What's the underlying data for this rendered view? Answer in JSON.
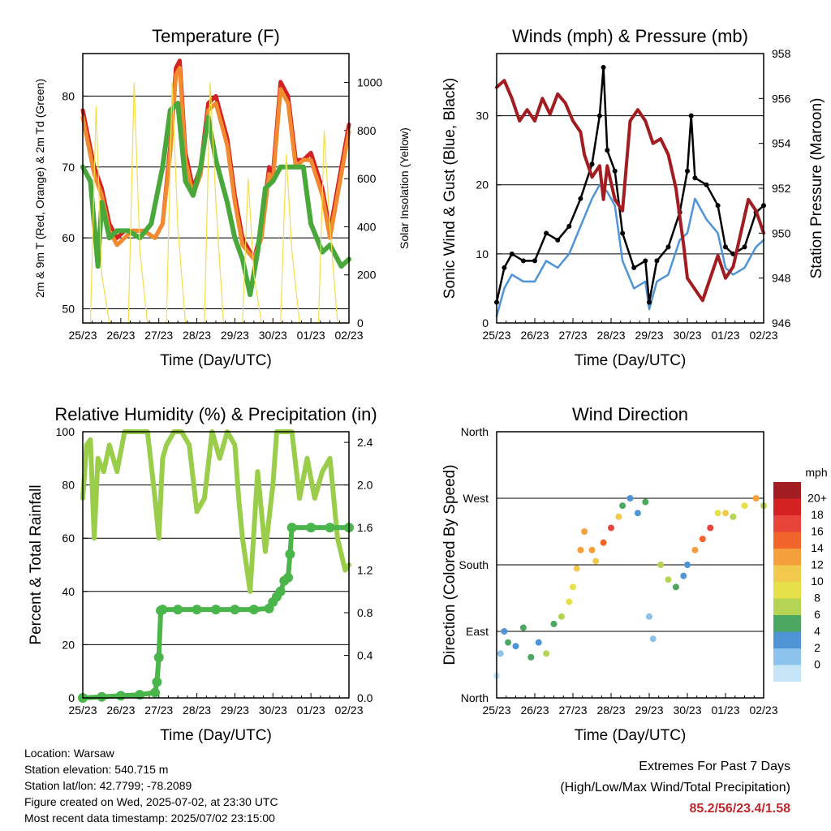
{
  "chart_data": [
    {
      "type": "line",
      "title": "Temperature (F)",
      "xlabel": "Time (Day/UTC)",
      "ylabel": "2m & 9m T (Red, Orange) & 2m Td (Green)",
      "y2label": "Solar Insolation (Yellow)",
      "x_ticks": [
        "25/23",
        "26/23",
        "27/23",
        "28/23",
        "29/23",
        "30/23",
        "01/23",
        "02/23"
      ],
      "ylim": [
        48,
        86
      ],
      "y_ticks": [
        50,
        60,
        70,
        80
      ],
      "y2lim": [
        0,
        1120
      ],
      "y2_ticks": [
        0,
        200,
        400,
        600,
        800,
        1000
      ],
      "grid": true,
      "series": [
        {
          "color": "#d42121",
          "x": [
            0,
            0.3,
            0.5,
            0.7,
            0.9,
            1.1,
            1.3,
            1.6,
            1.9,
            2.1,
            2.3,
            2.45,
            2.55,
            2.7,
            2.9,
            3.1,
            3.3,
            3.5,
            3.8,
            4.0,
            4.2,
            4.5,
            4.7,
            4.9,
            5.0,
            5.2,
            5.4,
            5.6,
            5.8,
            6.0,
            6.3,
            6.5,
            6.8,
            7.0
          ],
          "values": [
            78,
            70,
            67,
            62,
            60,
            61,
            61,
            61,
            60,
            62,
            73,
            84,
            85,
            72,
            67,
            70,
            79,
            80,
            74,
            66,
            60,
            57,
            61,
            70,
            69,
            82,
            80,
            71,
            71,
            72,
            67,
            61,
            70,
            76
          ]
        },
        {
          "color": "#f28a30",
          "x": [
            0,
            0.3,
            0.5,
            0.7,
            0.9,
            1.1,
            1.3,
            1.6,
            1.9,
            2.1,
            2.3,
            2.45,
            2.55,
            2.7,
            2.9,
            3.1,
            3.3,
            3.5,
            3.8,
            4.0,
            4.2,
            4.5,
            4.7,
            4.9,
            5.0,
            5.2,
            5.4,
            5.6,
            5.8,
            6.0,
            6.3,
            6.5,
            6.8,
            7.0
          ],
          "values": [
            77,
            69,
            66,
            61,
            59,
            60,
            61,
            61,
            60,
            62,
            72,
            83,
            84,
            71,
            66,
            69,
            78,
            79,
            73,
            65,
            59,
            57,
            60,
            69,
            68,
            81,
            79,
            70,
            71,
            71,
            66,
            60,
            69,
            75
          ]
        },
        {
          "color": "#4aa83b",
          "x": [
            0,
            0.2,
            0.4,
            0.5,
            0.7,
            0.9,
            1.2,
            1.5,
            1.8,
            2.1,
            2.3,
            2.5,
            2.7,
            2.9,
            3.1,
            3.3,
            3.5,
            3.8,
            4.0,
            4.2,
            4.4,
            4.6,
            4.8,
            5.0,
            5.2,
            5.5,
            5.8,
            6.0,
            6.3,
            6.5,
            6.8,
            7.0
          ],
          "values": [
            70,
            68,
            56,
            65,
            60,
            61,
            61,
            60,
            62,
            70,
            78,
            79,
            68,
            66,
            70,
            77,
            71,
            65,
            60,
            57,
            52,
            58,
            67,
            68,
            70,
            70,
            70,
            62,
            58,
            59,
            56,
            57
          ]
        },
        {
          "color": "#f5dd4a",
          "x": [
            0,
            0.2,
            0.35,
            0.5,
            0.7,
            0.85,
            1.0,
            1.2,
            1.35,
            1.5,
            1.7,
            1.85,
            2.0,
            2.2,
            2.35,
            2.5,
            2.7,
            2.85,
            3.0,
            3.2,
            3.35,
            3.5,
            3.7,
            3.85,
            4.0,
            4.2,
            4.35,
            4.5,
            4.7,
            4.85,
            5.0,
            5.2,
            5.35,
            5.5,
            5.7,
            5.85,
            6.0,
            6.2,
            6.35,
            6.5,
            6.7,
            6.85,
            7.0
          ],
          "values2": [
            0,
            0,
            900,
            200,
            0,
            0,
            0,
            0,
            1000,
            300,
            0,
            0,
            0,
            0,
            1000,
            400,
            0,
            0,
            0,
            0,
            1000,
            500,
            0,
            0,
            0,
            0,
            600,
            200,
            0,
            0,
            0,
            0,
            700,
            300,
            0,
            0,
            0,
            0,
            800,
            400,
            0,
            0,
            0
          ]
        }
      ]
    },
    {
      "type": "line",
      "title": "Winds (mph) & Pressure (mb)",
      "xlabel": "Time (Day/UTC)",
      "ylabel": "Sonic Wind & Gust (Blue, Black)",
      "y2label": "Station Pressure (Maroon)",
      "x_ticks": [
        "25/23",
        "26/23",
        "27/23",
        "28/23",
        "29/23",
        "30/23",
        "01/23",
        "02/23"
      ],
      "ylim": [
        0,
        39
      ],
      "y_ticks": [
        0,
        10,
        20,
        30
      ],
      "y2lim": [
        946,
        958
      ],
      "y2_ticks": [
        946,
        948,
        950,
        952,
        954,
        956,
        958
      ],
      "grid": true,
      "series": [
        {
          "color": "#4f94d4",
          "x": [
            0,
            0.2,
            0.4,
            0.7,
            1.0,
            1.3,
            1.6,
            1.9,
            2.2,
            2.5,
            2.7,
            2.9,
            3.1,
            3.3,
            3.6,
            3.9,
            4.0,
            4.2,
            4.5,
            4.8,
            5.0,
            5.2,
            5.5,
            5.8,
            6.0,
            6.2,
            6.5,
            6.8,
            7.0
          ],
          "values": [
            1,
            5,
            7,
            6,
            6,
            9,
            8,
            10,
            14,
            18,
            20,
            19,
            17,
            9,
            5,
            6,
            2,
            6,
            7,
            12,
            13,
            18,
            15,
            13,
            8,
            7,
            8,
            11,
            12
          ]
        },
        {
          "color": "#000000",
          "x": [
            0,
            0.2,
            0.4,
            0.7,
            1.0,
            1.3,
            1.6,
            1.9,
            2.2,
            2.5,
            2.7,
            2.8,
            2.9,
            3.1,
            3.3,
            3.6,
            3.9,
            4.0,
            4.2,
            4.5,
            4.8,
            5.0,
            5.1,
            5.2,
            5.5,
            5.8,
            6.0,
            6.2,
            6.5,
            6.8,
            7.0
          ],
          "values": [
            3,
            8,
            10,
            9,
            9,
            13,
            12,
            14,
            18,
            23,
            30,
            37,
            25,
            22,
            13,
            8,
            9,
            3,
            9,
            11,
            16,
            22,
            30,
            21,
            20,
            17,
            11,
            10,
            11,
            16,
            17
          ]
        },
        {
          "color": "#a11d21",
          "x": [
            0,
            0.2,
            0.4,
            0.6,
            0.8,
            1.0,
            1.2,
            1.4,
            1.6,
            1.8,
            2.0,
            2.2,
            2.3,
            2.5,
            2.7,
            2.8,
            2.9,
            3.1,
            3.3,
            3.5,
            3.7,
            3.9,
            4.1,
            4.3,
            4.5,
            4.7,
            4.9,
            5.0,
            5.2,
            5.4,
            5.6,
            5.8,
            6.0,
            6.2,
            6.4,
            6.6,
            6.8,
            7.0
          ],
          "values2": [
            956.5,
            956.8,
            956.0,
            955.0,
            955.5,
            955.0,
            956.0,
            955.3,
            956.2,
            955.8,
            955.0,
            954.5,
            953.5,
            952.5,
            953.0,
            951.5,
            953.0,
            951.5,
            951.0,
            955.0,
            955.5,
            955.0,
            954.0,
            954.2,
            953.5,
            952.0,
            949.5,
            948.0,
            947.5,
            947.0,
            948.0,
            949.0,
            948.0,
            948.5,
            950.0,
            951.5,
            951.0,
            950.0
          ]
        }
      ]
    },
    {
      "type": "line",
      "title": "Relative Humidity (%) & Precipitation (in)",
      "xlabel": "Time (Day/UTC)",
      "ylabel": "Percent & Total Rainfall",
      "x_ticks": [
        "25/23",
        "26/23",
        "27/23",
        "28/23",
        "29/23",
        "30/23",
        "01/23",
        "02/23"
      ],
      "ylim": [
        0,
        100
      ],
      "y_ticks": [
        0,
        20,
        40,
        60,
        80,
        100
      ],
      "y2lim": [
        0,
        2.5
      ],
      "y2_ticks": [
        "0.0",
        "0.4",
        "0.8",
        "1.2",
        "1.6",
        "2.0",
        "2.4"
      ],
      "grid": true,
      "series": [
        {
          "color": "#9acd4a",
          "x": [
            0,
            0.1,
            0.2,
            0.3,
            0.4,
            0.55,
            0.7,
            0.9,
            1.1,
            1.3,
            1.5,
            1.7,
            1.9,
            2.0,
            2.1,
            2.2,
            2.4,
            2.6,
            2.8,
            3.0,
            3.2,
            3.4,
            3.6,
            3.8,
            4.0,
            4.1,
            4.2,
            4.4,
            4.6,
            4.8,
            5.0,
            5.1,
            5.3,
            5.5,
            5.7,
            5.9,
            6.1,
            6.3,
            6.5,
            6.7,
            6.9,
            7.0
          ],
          "values": [
            75,
            95,
            97,
            60,
            90,
            85,
            95,
            85,
            100,
            100,
            100,
            100,
            75,
            60,
            90,
            95,
            100,
            100,
            95,
            70,
            75,
            100,
            90,
            100,
            95,
            75,
            60,
            40,
            85,
            55,
            80,
            100,
            100,
            100,
            75,
            90,
            75,
            85,
            90,
            60,
            48,
            50
          ]
        },
        {
          "color": "#4ab54a",
          "x": [
            0,
            0.5,
            1.0,
            1.5,
            1.9,
            1.95,
            2.0,
            2.05,
            2.1,
            2.5,
            3.0,
            3.5,
            4.0,
            4.5,
            4.9,
            5.0,
            5.1,
            5.2,
            5.3,
            5.4,
            5.45,
            5.5,
            6.0,
            6.5,
            7.0
          ],
          "values2": [
            0,
            0.01,
            0.02,
            0.03,
            0.05,
            0.15,
            0.38,
            0.82,
            0.83,
            0.83,
            0.83,
            0.83,
            0.83,
            0.83,
            0.84,
            0.9,
            0.95,
            1.0,
            1.1,
            1.13,
            1.35,
            1.6,
            1.6,
            1.6,
            1.6
          ]
        }
      ]
    },
    {
      "type": "scatter",
      "title": "Wind Direction",
      "xlabel": "Time (Day/UTC)",
      "ylabel": "Direction (Colored By Speed)",
      "x_ticks": [
        "25/23",
        "26/23",
        "27/23",
        "28/23",
        "29/23",
        "30/23",
        "01/23",
        "02/23"
      ],
      "ylim": [
        0,
        360
      ],
      "y_ticks": [
        "North",
        "East",
        "South",
        "West",
        "North"
      ],
      "legend": {
        "title": "mph",
        "labels": [
          "20+",
          "18",
          "16",
          "14",
          "12",
          "10",
          "8",
          "6",
          "4",
          "2",
          "0"
        ],
        "colors": [
          "#a11d21",
          "#d42121",
          "#e8443a",
          "#f2652a",
          "#f5a03c",
          "#f2c94c",
          "#e6e04a",
          "#b5d454",
          "#4aa860",
          "#4f94d4",
          "#8cc3ec",
          "#c6e6f7"
        ]
      },
      "x": [
        0,
        0.1,
        0.2,
        0.3,
        0.5,
        0.7,
        0.9,
        1.1,
        1.3,
        1.5,
        1.7,
        1.9,
        2.0,
        2.1,
        2.2,
        2.3,
        2.5,
        2.6,
        2.8,
        3.0,
        3.2,
        3.3,
        3.5,
        3.7,
        3.9,
        4.0,
        4.1,
        4.3,
        4.5,
        4.7,
        4.9,
        5.0,
        5.2,
        5.4,
        5.6,
        5.8,
        6.0,
        6.2,
        6.5,
        6.8,
        7.0
      ],
      "values": [
        30,
        60,
        90,
        75,
        70,
        95,
        55,
        75,
        60,
        100,
        110,
        130,
        150,
        175,
        200,
        225,
        200,
        185,
        210,
        230,
        245,
        260,
        270,
        250,
        265,
        110,
        80,
        180,
        160,
        150,
        165,
        180,
        200,
        215,
        230,
        250,
        250,
        245,
        260,
        270,
        260
      ],
      "speeds": [
        1,
        3,
        5,
        6,
        4,
        7,
        6,
        5,
        8,
        7,
        9,
        10,
        11,
        12,
        14,
        15,
        14,
        13,
        16,
        18,
        12,
        6,
        5,
        4,
        6,
        2,
        3,
        8,
        9,
        6,
        5,
        4,
        14,
        16,
        18,
        10,
        12,
        8,
        10,
        14,
        8
      ]
    }
  ],
  "info": {
    "location": "Location: Warsaw",
    "elevation": "Station elevation: 540.715 m",
    "latlon": "Station lat/lon: 42.7799; -78.2089",
    "created": "Figure created on Wed, 2025-07-02, at 23:30 UTC",
    "recent": "Most recent data timestamp: 2025/07/02 23:15:00"
  },
  "extremes": {
    "line1": "Extremes For Past 7 Days",
    "line2": "(High/Low/Max Wind/Total Precipitation)",
    "values": "85.2/56/23.4/1.58"
  }
}
